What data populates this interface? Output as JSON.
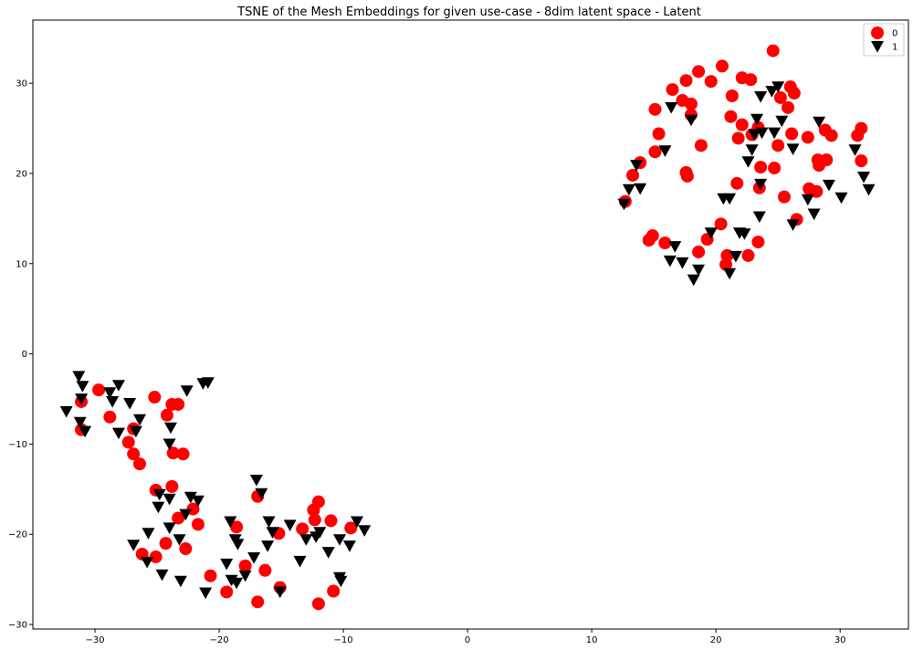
{
  "chart_data": {
    "type": "scatter",
    "title": "TSNE of the Mesh Embeddings for given use-case - 8dim latent space - Latent",
    "xlabel": "",
    "ylabel": "",
    "xlim": [
      -35,
      35.5
    ],
    "ylim": [
      -30.5,
      37
    ],
    "x_ticks": [
      -30,
      -20,
      -10,
      0,
      10,
      20,
      30
    ],
    "y_ticks": [
      -30,
      -20,
      -10,
      0,
      10,
      20,
      30
    ],
    "grid": false,
    "legend": "top-right",
    "series": [
      {
        "name": "0",
        "marker": "circle",
        "color": "#ff0000",
        "points": [
          [
            24.6,
            33.6
          ],
          [
            20.5,
            31.9
          ],
          [
            18.6,
            31.3
          ],
          [
            22.1,
            30.6
          ],
          [
            22.8,
            30.4
          ],
          [
            17.6,
            30.3
          ],
          [
            19.6,
            30.2
          ],
          [
            26.0,
            29.6
          ],
          [
            16.5,
            29.3
          ],
          [
            26.3,
            28.9
          ],
          [
            21.3,
            28.6
          ],
          [
            25.2,
            28.4
          ],
          [
            17.3,
            28.1
          ],
          [
            18.0,
            27.7
          ],
          [
            25.8,
            27.3
          ],
          [
            15.1,
            27.1
          ],
          [
            18.0,
            26.5
          ],
          [
            21.2,
            26.3
          ],
          [
            22.1,
            25.4
          ],
          [
            23.4,
            25.1
          ],
          [
            31.7,
            25.0
          ],
          [
            28.8,
            24.8
          ],
          [
            15.4,
            24.4
          ],
          [
            26.1,
            24.4
          ],
          [
            22.9,
            24.3
          ],
          [
            29.3,
            24.2
          ],
          [
            31.4,
            24.2
          ],
          [
            27.4,
            24.0
          ],
          [
            21.8,
            23.9
          ],
          [
            18.8,
            23.1
          ],
          [
            25.0,
            23.1
          ],
          [
            15.1,
            22.4
          ],
          [
            13.9,
            21.2
          ],
          [
            31.7,
            21.4
          ],
          [
            28.2,
            21.5
          ],
          [
            28.9,
            21.5
          ],
          [
            28.3,
            20.9
          ],
          [
            23.6,
            20.7
          ],
          [
            24.7,
            20.6
          ],
          [
            17.6,
            20.1
          ],
          [
            17.7,
            19.7
          ],
          [
            13.3,
            19.8
          ],
          [
            21.7,
            18.9
          ],
          [
            23.5,
            18.4
          ],
          [
            27.5,
            18.3
          ],
          [
            28.1,
            18.0
          ],
          [
            25.5,
            17.4
          ],
          [
            12.7,
            16.9
          ],
          [
            26.5,
            14.9
          ],
          [
            20.4,
            14.4
          ],
          [
            19.3,
            12.7
          ],
          [
            14.6,
            12.6
          ],
          [
            14.9,
            13.1
          ],
          [
            15.9,
            12.3
          ],
          [
            23.4,
            12.4
          ],
          [
            18.6,
            11.3
          ],
          [
            20.9,
            10.9
          ],
          [
            22.6,
            10.9
          ],
          [
            20.8,
            9.9
          ],
          [
            -31.1,
            -5.3
          ],
          [
            -29.7,
            -4.0
          ],
          [
            -25.2,
            -4.8
          ],
          [
            -23.8,
            -5.6
          ],
          [
            -23.3,
            -5.6
          ],
          [
            -28.8,
            -7.0
          ],
          [
            -24.2,
            -6.8
          ],
          [
            -31.1,
            -8.4
          ],
          [
            -26.9,
            -8.3
          ],
          [
            -27.3,
            -9.8
          ],
          [
            -26.9,
            -11.1
          ],
          [
            -23.7,
            -11.0
          ],
          [
            -22.9,
            -11.1
          ],
          [
            -26.4,
            -12.2
          ],
          [
            -25.1,
            -15.1
          ],
          [
            -23.8,
            -14.7
          ],
          [
            -23.3,
            -18.2
          ],
          [
            -22.1,
            -17.2
          ],
          [
            -16.9,
            -15.8
          ],
          [
            -12.0,
            -16.4
          ],
          [
            -12.4,
            -17.3
          ],
          [
            -21.7,
            -18.9
          ],
          [
            -12.3,
            -18.4
          ],
          [
            -11.0,
            -18.5
          ],
          [
            -18.6,
            -19.2
          ],
          [
            -13.3,
            -19.4
          ],
          [
            -9.4,
            -19.3
          ],
          [
            -15.2,
            -19.9
          ],
          [
            -24.3,
            -21.0
          ],
          [
            -22.7,
            -21.6
          ],
          [
            -26.2,
            -22.2
          ],
          [
            -25.1,
            -22.5
          ],
          [
            -17.9,
            -23.5
          ],
          [
            -16.3,
            -24.0
          ],
          [
            -20.7,
            -24.6
          ],
          [
            -15.1,
            -25.9
          ],
          [
            -19.4,
            -26.4
          ],
          [
            -10.8,
            -26.3
          ],
          [
            -16.9,
            -27.5
          ],
          [
            -12.0,
            -27.7
          ]
        ]
      },
      {
        "name": "1",
        "marker": "triangle-down",
        "color": "#000000",
        "points": [
          [
            25.0,
            29.6
          ],
          [
            24.5,
            29.1
          ],
          [
            23.6,
            28.5
          ],
          [
            16.4,
            27.3
          ],
          [
            23.3,
            26.0
          ],
          [
            18.0,
            25.9
          ],
          [
            25.3,
            25.8
          ],
          [
            28.3,
            25.7
          ],
          [
            23.7,
            24.5
          ],
          [
            24.7,
            24.5
          ],
          [
            23.1,
            24.3
          ],
          [
            15.9,
            22.5
          ],
          [
            22.9,
            22.6
          ],
          [
            26.2,
            22.7
          ],
          [
            31.2,
            22.6
          ],
          [
            22.6,
            21.3
          ],
          [
            13.6,
            20.9
          ],
          [
            31.9,
            19.6
          ],
          [
            23.6,
            18.8
          ],
          [
            29.1,
            18.7
          ],
          [
            13.0,
            18.2
          ],
          [
            13.9,
            18.3
          ],
          [
            32.3,
            18.2
          ],
          [
            30.1,
            17.3
          ],
          [
            20.6,
            17.2
          ],
          [
            21.1,
            17.2
          ],
          [
            27.4,
            17.1
          ],
          [
            12.6,
            16.6
          ],
          [
            27.9,
            15.5
          ],
          [
            23.5,
            15.2
          ],
          [
            26.2,
            14.3
          ],
          [
            19.6,
            13.4
          ],
          [
            21.9,
            13.4
          ],
          [
            22.3,
            13.3
          ],
          [
            16.7,
            11.9
          ],
          [
            21.6,
            10.8
          ],
          [
            16.3,
            10.3
          ],
          [
            17.3,
            10.1
          ],
          [
            18.6,
            9.3
          ],
          [
            21.1,
            8.9
          ],
          [
            18.2,
            8.2
          ],
          [
            -31.3,
            -2.5
          ],
          [
            -31.0,
            -3.6
          ],
          [
            -28.1,
            -3.5
          ],
          [
            -21.3,
            -3.3
          ],
          [
            -20.9,
            -3.2
          ],
          [
            -28.8,
            -4.3
          ],
          [
            -22.6,
            -4.1
          ],
          [
            -31.1,
            -5.0
          ],
          [
            -28.6,
            -5.3
          ],
          [
            -27.2,
            -5.5
          ],
          [
            -32.3,
            -6.4
          ],
          [
            -26.4,
            -7.3
          ],
          [
            -31.2,
            -7.6
          ],
          [
            -23.9,
            -8.2
          ],
          [
            -30.8,
            -8.6
          ],
          [
            -26.7,
            -8.6
          ],
          [
            -28.1,
            -8.8
          ],
          [
            -24.0,
            -10.0
          ],
          [
            -17.0,
            -14.0
          ],
          [
            -24.8,
            -15.6
          ],
          [
            -16.6,
            -15.5
          ],
          [
            -24.0,
            -16.1
          ],
          [
            -22.3,
            -15.9
          ],
          [
            -21.7,
            -16.3
          ],
          [
            -24.9,
            -17.0
          ],
          [
            -22.7,
            -17.8
          ],
          [
            -19.1,
            -18.6
          ],
          [
            -16.0,
            -18.6
          ],
          [
            -14.3,
            -19.0
          ],
          [
            -8.9,
            -18.6
          ],
          [
            -24.0,
            -19.3
          ],
          [
            -15.7,
            -19.8
          ],
          [
            -11.9,
            -19.8
          ],
          [
            -25.7,
            -19.9
          ],
          [
            -8.3,
            -19.6
          ],
          [
            -12.2,
            -20.3
          ],
          [
            -13.0,
            -20.6
          ],
          [
            -10.3,
            -20.6
          ],
          [
            -18.7,
            -20.6
          ],
          [
            -23.2,
            -20.6
          ],
          [
            -18.5,
            -21.1
          ],
          [
            -16.1,
            -21.3
          ],
          [
            -26.9,
            -21.2
          ],
          [
            -9.5,
            -21.3
          ],
          [
            -11.2,
            -22.0
          ],
          [
            -17.2,
            -22.6
          ],
          [
            -25.8,
            -23.1
          ],
          [
            -13.5,
            -23.0
          ],
          [
            -19.4,
            -23.3
          ],
          [
            -24.6,
            -24.5
          ],
          [
            -17.9,
            -24.6
          ],
          [
            -19.0,
            -25.1
          ],
          [
            -18.6,
            -25.4
          ],
          [
            -23.1,
            -25.2
          ],
          [
            -10.3,
            -24.8
          ],
          [
            -10.2,
            -25.2
          ],
          [
            -21.1,
            -26.5
          ],
          [
            -15.1,
            -26.4
          ]
        ]
      }
    ]
  }
}
